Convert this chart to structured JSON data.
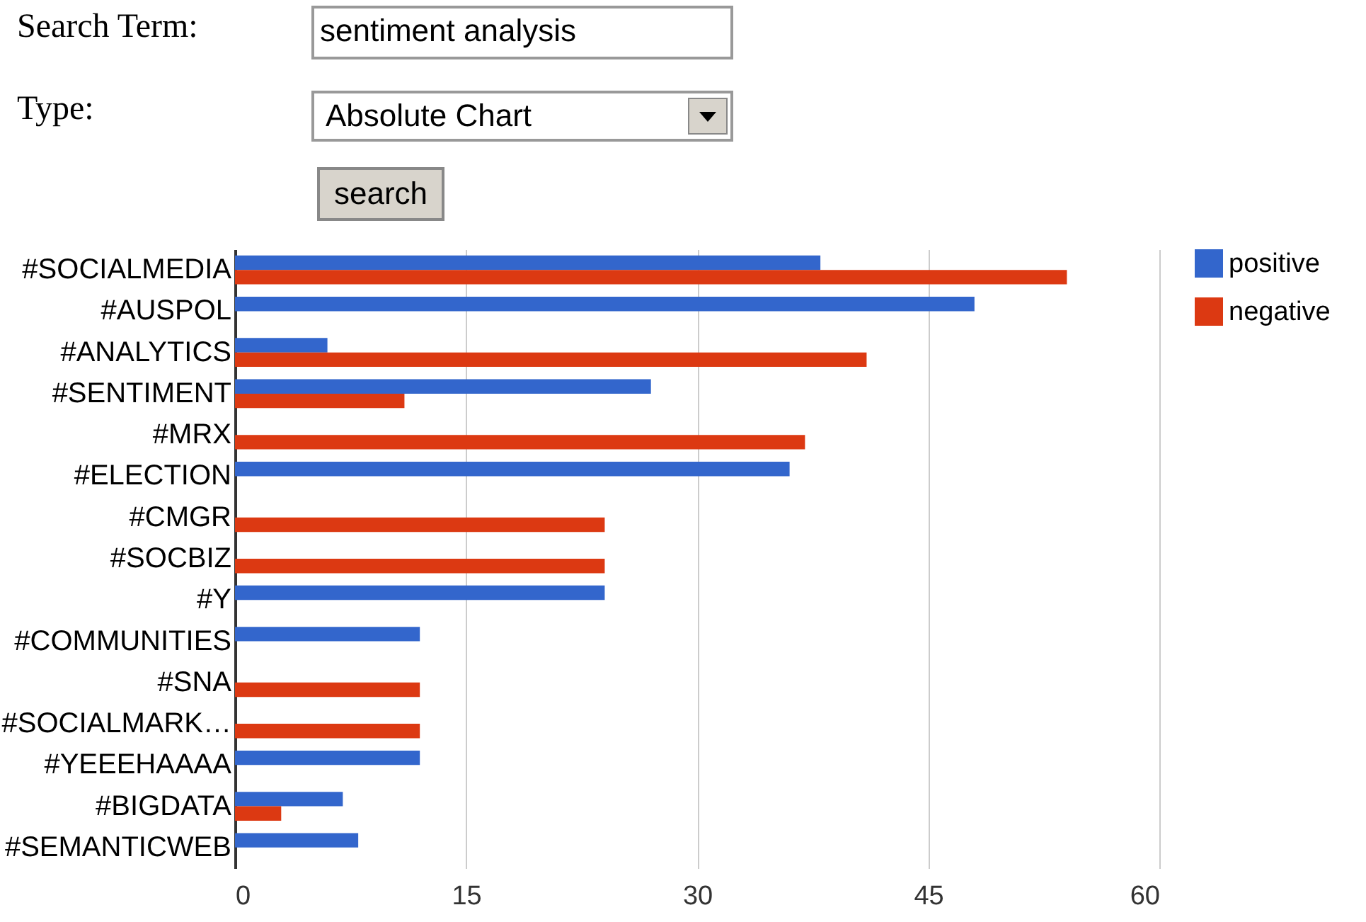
{
  "chart_data": {
    "type": "bar",
    "orientation": "horizontal",
    "annotations": [
      "Search Term:",
      "sentiment analysis",
      "Type:",
      "Absolute Chart",
      "search"
    ],
    "categories": [
      "#SOCIALMEDIA",
      "#AUSPOL",
      "#ANALYTICS",
      "#SENTIMENT",
      "#MRX",
      "#ELECTION",
      "#CMGR",
      "#SOCBIZ",
      "#Y",
      "#COMMUNITIES",
      "#SNA",
      "#SOCIALMARK…",
      "#YEEEHAAAA",
      "#BIGDATA",
      "#SEMANTICWEB"
    ],
    "series": [
      {
        "name": "positive",
        "color": "#3366cc",
        "values": [
          38,
          48,
          6,
          27,
          null,
          36,
          null,
          null,
          24,
          12,
          null,
          null,
          12,
          7,
          8
        ]
      },
      {
        "name": "negative",
        "color": "#dc3912",
        "values": [
          54,
          null,
          41,
          11,
          37,
          null,
          24,
          24,
          null,
          null,
          12,
          12,
          null,
          3,
          null
        ]
      }
    ],
    "xlim": [
      0,
      60
    ],
    "xticks": [
      0,
      15,
      30,
      45,
      60
    ],
    "grid": "x",
    "legend": "top right"
  }
}
